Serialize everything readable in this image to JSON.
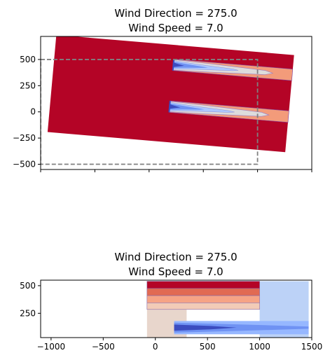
{
  "chart_data": [
    {
      "type": "heatmap",
      "title_line1": "Wind Direction = 275.0",
      "title_line2": "Wind Speed = 7.0",
      "xlabel": "",
      "ylabel": "",
      "xlim": [
        -1000,
        1500
      ],
      "ylim": [
        -550,
        720
      ],
      "xticks": [
        -1000,
        -500,
        0,
        500,
        1000,
        1500
      ],
      "xtick_labels_shown": false,
      "yticks": [
        500,
        250,
        0,
        -250,
        -500
      ],
      "ytick_labels": [
        "500",
        "250",
        "0",
        "−250",
        "−500"
      ],
      "grid": false,
      "colormap": "coolwarm",
      "rotated_domain_deg": 5,
      "domain": {
        "x": [
          -900,
          1300
        ],
        "y": [
          -290,
          640
        ]
      },
      "boundary_box": {
        "x": [
          -1000,
          1000
        ],
        "y": [
          -500,
          500
        ],
        "style": "dashed"
      },
      "wakes": [
        {
          "x_start": 200,
          "x_end": 1300,
          "y_center": 450
        },
        {
          "x_start": 200,
          "x_end": 1300,
          "y_center": 50
        }
      ],
      "colors": {
        "background": "#b40426",
        "band_mid": "#f39b7a",
        "band_light": "#dddcdc",
        "core_light": "#aec7fd",
        "core": "#6f92f3",
        "core_dark": "#3b4cc0",
        "box": "#808080"
      }
    },
    {
      "type": "heatmap",
      "title_line1": "Wind Direction = 275.0",
      "title_line2": "Wind Speed = 7.0",
      "xlabel": "",
      "ylabel": "",
      "xlim": [
        -1100,
        1500
      ],
      "ylim": [
        30,
        550
      ],
      "xticks": [
        -1000,
        -500,
        0,
        500,
        1000,
        1500
      ],
      "xtick_labels": [
        "−1000",
        "−500",
        "0",
        "500",
        "1000",
        "1500"
      ],
      "yticks": [
        500,
        250
      ],
      "ytick_labels": [
        "500",
        "250"
      ],
      "grid": false,
      "colormap": "coolwarm",
      "bands": [
        {
          "y": [
            475,
            540
          ],
          "color": "#b40426"
        },
        {
          "y": [
            410,
            475
          ],
          "color": "#e16a53"
        },
        {
          "y": [
            345,
            410
          ],
          "color": "#f6a385"
        },
        {
          "y": [
            285,
            345
          ],
          "color": "#f2cbb7"
        }
      ],
      "bands_x": [
        -80,
        1000
      ],
      "shade_region": {
        "x": [
          -80,
          300
        ],
        "y": [
          30,
          540
        ],
        "color": "#e8d6cc"
      },
      "blue_region": {
        "x": [
          1000,
          1470
        ],
        "y": [
          30,
          540
        ],
        "color": "#bcd2f7"
      },
      "wake_band": {
        "x": [
          180,
          1470
        ],
        "y": [
          60,
          180
        ],
        "colors": [
          "#96b7ff",
          "#6f92f3",
          "#3b4cc0"
        ]
      }
    }
  ]
}
